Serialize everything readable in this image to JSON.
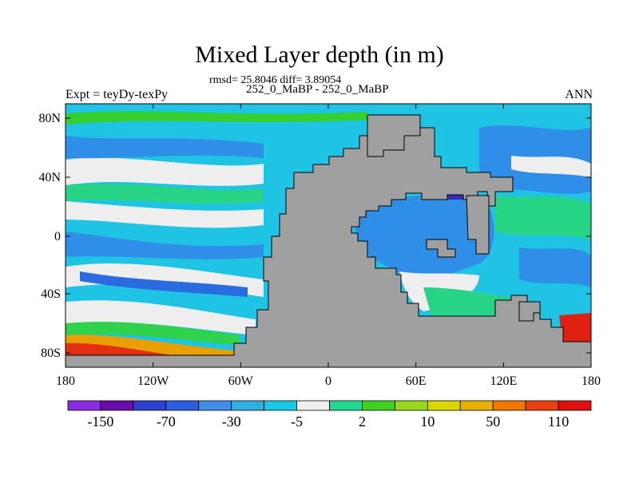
{
  "title": "Mixed Layer depth (in m)",
  "subtitle_stats": "rmsd= 25.8046 diff= 3.89054",
  "subtitle_runs": "252_0_MaBP - 252_0_MaBP",
  "experiment_label": "Expt = teyDy-texPy",
  "season_label": "ANN",
  "lat_ticks": [
    "80N",
    "40N",
    "0",
    "40S",
    "80S"
  ],
  "lon_ticks": [
    "180",
    "120W",
    "60W",
    "0",
    "60E",
    "120E",
    "180"
  ],
  "colorbar": {
    "colors": [
      "#8a2be2",
      "#6a0dad",
      "#3040d0",
      "#2a60e0",
      "#3f8fe8",
      "#2fb0e0",
      "#19c8e6",
      "#efefef",
      "#20d890",
      "#40d020",
      "#9ad820",
      "#d8d800",
      "#e8b000",
      "#f07800",
      "#ea4010",
      "#e01010"
    ],
    "labels": [
      "-150",
      "-70",
      "-30",
      "-5",
      "2",
      "10",
      "50",
      "110"
    ]
  },
  "land_color": "#a0a0a0"
}
